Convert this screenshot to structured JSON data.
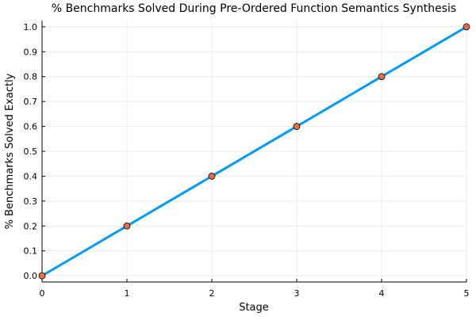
{
  "chart_data": {
    "type": "line",
    "title": "% Benchmarks Solved During Pre-Ordered Function Semantics Synthesis",
    "xlabel": "Stage",
    "ylabel": "% Benchmarks Solved Exactly",
    "x": [
      0,
      1,
      2,
      3,
      4,
      5
    ],
    "series": [
      {
        "values": [
          0.0,
          0.2,
          0.4,
          0.6,
          0.8,
          1.0
        ]
      }
    ],
    "markers": true,
    "xlim": [
      0,
      5
    ],
    "ylim": [
      -0.025,
      1.025
    ],
    "x_ticks": [
      "0",
      "1",
      "2",
      "3",
      "4",
      "5"
    ],
    "y_ticks": [
      "0.0",
      "0.1",
      "0.2",
      "0.3",
      "0.4",
      "0.5",
      "0.6",
      "0.7",
      "0.8",
      "0.9",
      "1.0"
    ],
    "grid": true,
    "legend": "none",
    "colors": {
      "line": "#009AFA",
      "marker": "#E26F46",
      "marker_edge": "#000000",
      "grid": "#EBEBEB",
      "axis": "#000000"
    }
  }
}
